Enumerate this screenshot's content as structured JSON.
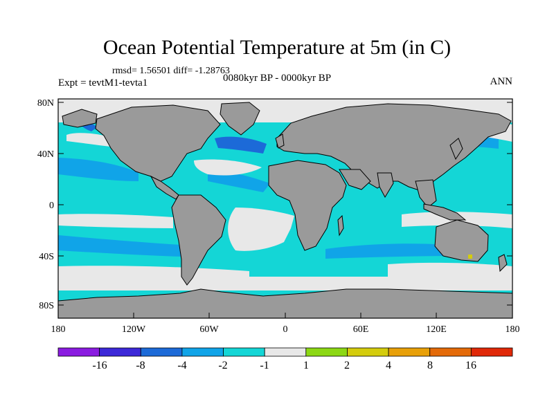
{
  "title": "Ocean Potential Temperature at 5m (in C)",
  "stats": "rmsd= 1.56501 diff= -1.28763",
  "expt": "Expt = tevtM1-tevta1",
  "period": "0080kyr BP - 0000kyr BP",
  "season": "ANN",
  "lat_ticks": [
    "80N",
    "40N",
    "0",
    "40S",
    "80S"
  ],
  "lon_ticks": [
    "180",
    "120W",
    "60W",
    "0",
    "60E",
    "120E",
    "180"
  ],
  "colorbar": {
    "labels": [
      "-16",
      "-8",
      "-4",
      "-2",
      "-1",
      "1",
      "2",
      "4",
      "8",
      "16"
    ],
    "colors": [
      "#8a1be0",
      "#3c28d8",
      "#1c6ad8",
      "#10a4e8",
      "#14d6d6",
      "#e8e8e8",
      "#8cd814",
      "#d4cc0c",
      "#e8a008",
      "#e46a08",
      "#e02808"
    ]
  },
  "colors": {
    "land": "#9a9a9a",
    "ocean_neutral": "#e8e8e8",
    "ocean_cool": "#14d6d6",
    "ocean_colder": "#10a4e8",
    "ocean_coldest": "#1c6ad8"
  }
}
